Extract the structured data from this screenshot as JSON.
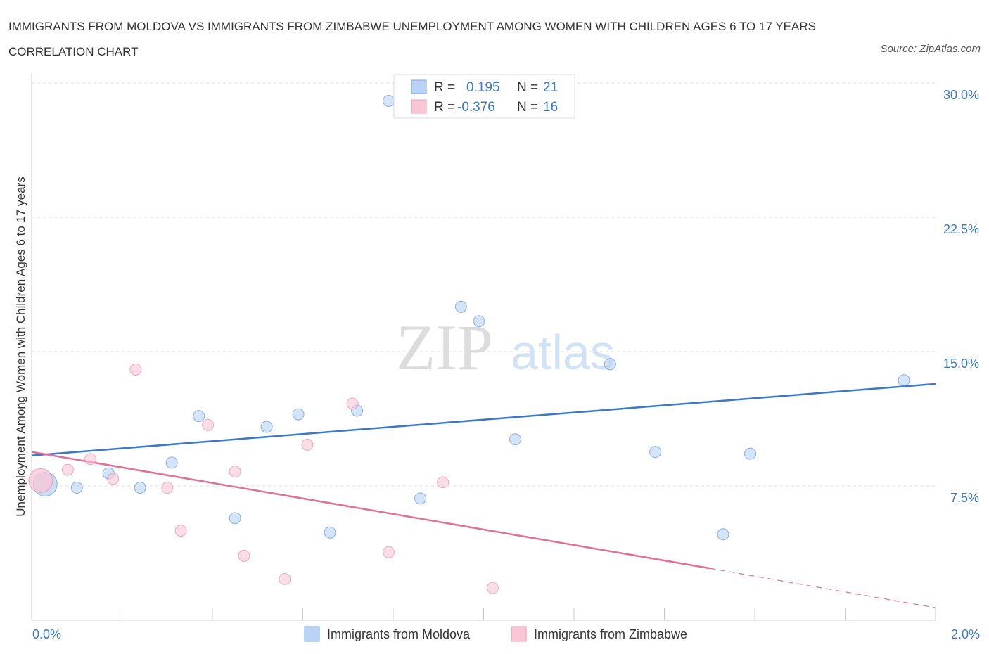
{
  "title": "IMMIGRANTS FROM MOLDOVA VS IMMIGRANTS FROM ZIMBABWE UNEMPLOYMENT AMONG WOMEN WITH CHILDREN AGES 6 TO 17 YEARS CORRELATION CHART",
  "source": "Source: ZipAtlas.com",
  "watermark": {
    "zip": "ZIP",
    "atlas": "atlas"
  },
  "stats": {
    "r_label": "R =",
    "n_label": "N =",
    "rows": [
      {
        "r": "0.195",
        "n": "21",
        "color": "#b8d3f5"
      },
      {
        "r": "-0.376",
        "n": "16",
        "color": "#f8c6d4"
      }
    ]
  },
  "chart_data": {
    "type": "scatter",
    "title": "IMMIGRANTS FROM MOLDOVA VS IMMIGRANTS FROM ZIMBABWE UNEMPLOYMENT AMONG WOMEN WITH CHILDREN AGES 6 TO 17 YEARS CORRELATION CHART",
    "xlabel": "",
    "ylabel": "Unemployment Among Women with Children Ages 6 to 17 years",
    "xlim": [
      0,
      2.0
    ],
    "ylim": [
      0,
      30
    ],
    "x_tick_labels": [
      "0.0%",
      "2.0%"
    ],
    "y_ticks": [
      7.5,
      15.0,
      22.5,
      30.0
    ],
    "y_tick_labels": [
      "7.5%",
      "15.0%",
      "22.5%",
      "30.0%"
    ],
    "grid": true,
    "legend_position": "bottom-center",
    "series": [
      {
        "name": "Immigrants from Moldova",
        "color": "#3a78c9",
        "fill": "#b8d3f5",
        "points": [
          {
            "x": 0.03,
            "y": 7.6,
            "big": true
          },
          {
            "x": 0.1,
            "y": 7.4
          },
          {
            "x": 0.17,
            "y": 8.2
          },
          {
            "x": 0.24,
            "y": 7.4
          },
          {
            "x": 0.31,
            "y": 8.8
          },
          {
            "x": 0.37,
            "y": 11.4
          },
          {
            "x": 0.45,
            "y": 5.7
          },
          {
            "x": 0.52,
            "y": 10.8
          },
          {
            "x": 0.59,
            "y": 11.5
          },
          {
            "x": 0.66,
            "y": 4.9
          },
          {
            "x": 0.72,
            "y": 11.7
          },
          {
            "x": 0.79,
            "y": 29.0
          },
          {
            "x": 0.86,
            "y": 6.8
          },
          {
            "x": 0.95,
            "y": 17.5
          },
          {
            "x": 0.99,
            "y": 16.7
          },
          {
            "x": 1.07,
            "y": 10.1
          },
          {
            "x": 1.28,
            "y": 14.3
          },
          {
            "x": 1.38,
            "y": 9.4
          },
          {
            "x": 1.53,
            "y": 4.8
          },
          {
            "x": 1.59,
            "y": 9.3
          },
          {
            "x": 1.93,
            "y": 13.4
          }
        ],
        "trend": {
          "x0": 0,
          "y0": 9.2,
          "x1": 2.0,
          "y1": 13.2
        }
      },
      {
        "name": "Immigrants from Zimbabwe",
        "color": "#e0709a",
        "fill": "#f8c6d4",
        "points": [
          {
            "x": 0.02,
            "y": 7.8,
            "big": true
          },
          {
            "x": 0.08,
            "y": 8.4
          },
          {
            "x": 0.13,
            "y": 9.0
          },
          {
            "x": 0.18,
            "y": 7.9
          },
          {
            "x": 0.23,
            "y": 14.0
          },
          {
            "x": 0.3,
            "y": 7.4
          },
          {
            "x": 0.33,
            "y": 5.0
          },
          {
            "x": 0.39,
            "y": 10.9
          },
          {
            "x": 0.45,
            "y": 8.3
          },
          {
            "x": 0.47,
            "y": 3.6
          },
          {
            "x": 0.56,
            "y": 2.3
          },
          {
            "x": 0.61,
            "y": 9.8
          },
          {
            "x": 0.71,
            "y": 12.1
          },
          {
            "x": 0.79,
            "y": 3.8
          },
          {
            "x": 0.91,
            "y": 7.7
          },
          {
            "x": 1.02,
            "y": 1.8
          }
        ],
        "trend": {
          "x0": 0,
          "y0": 9.4,
          "x1": 1.5,
          "y1": 2.9
        },
        "trend_dashed": {
          "x0": 1.5,
          "y0": 2.9,
          "x1": 2.0,
          "y1": 0.7
        }
      }
    ]
  }
}
